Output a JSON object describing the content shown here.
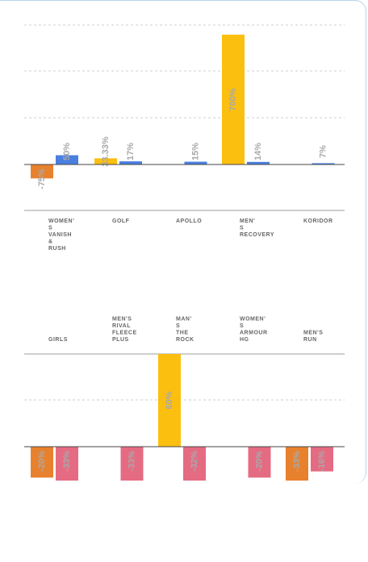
{
  "chart_data": [
    {
      "type": "bar",
      "categories": [
        [
          "WOMEN'",
          "S",
          "VANISH",
          "&",
          "RUSH"
        ],
        [
          "GOLF"
        ],
        [
          "APOLLO"
        ],
        [
          "MEN'",
          "S",
          "RECOVERY"
        ],
        [
          "KORIDOR"
        ]
      ],
      "series": [
        {
          "color": "#e8812e",
          "values": [
            -75,
            null,
            null,
            null,
            null
          ]
        },
        {
          "color": "#fbbf0f",
          "values": [
            null,
            33.33,
            null,
            700,
            null
          ]
        },
        {
          "color": "#4a7fe0",
          "values": [
            50,
            17,
            15,
            14,
            7
          ]
        }
      ],
      "value_labels": [
        [
          "-75%",
          null,
          null,
          null,
          null
        ],
        [
          null,
          "33.33%",
          null,
          "700%",
          null
        ],
        [
          "50%",
          "17%",
          "15%",
          "14%",
          "7%"
        ]
      ],
      "label_position": "bottom",
      "grid": true
    },
    {
      "type": "bar",
      "categories": [
        [
          "GIRLS"
        ],
        [
          "MEN'S",
          "RIVAL",
          "FLEECE",
          "PLUS"
        ],
        [
          "MAN'",
          "S",
          "THE",
          "ROCK"
        ],
        [
          "WOMEN'",
          "S",
          "ARMOUR",
          "HG"
        ],
        [
          "MEN'S",
          "RUN"
        ]
      ],
      "series": [
        {
          "color": "#e8812e",
          "values": [
            -20,
            null,
            null,
            null,
            -33
          ]
        },
        {
          "color": "#fbbf0f",
          "values": [
            null,
            null,
            60,
            null,
            null
          ]
        },
        {
          "color": "#e56b82",
          "values": [
            -33,
            -33,
            -32,
            -20,
            -16
          ]
        }
      ],
      "value_labels": [
        [
          "-20%",
          null,
          null,
          null,
          "-33%"
        ],
        [
          null,
          null,
          "60%",
          null,
          null
        ],
        [
          "-33%",
          "-33%",
          "-32%",
          "-20%",
          "-16%"
        ]
      ],
      "label_position": "top",
      "grid": true
    }
  ]
}
